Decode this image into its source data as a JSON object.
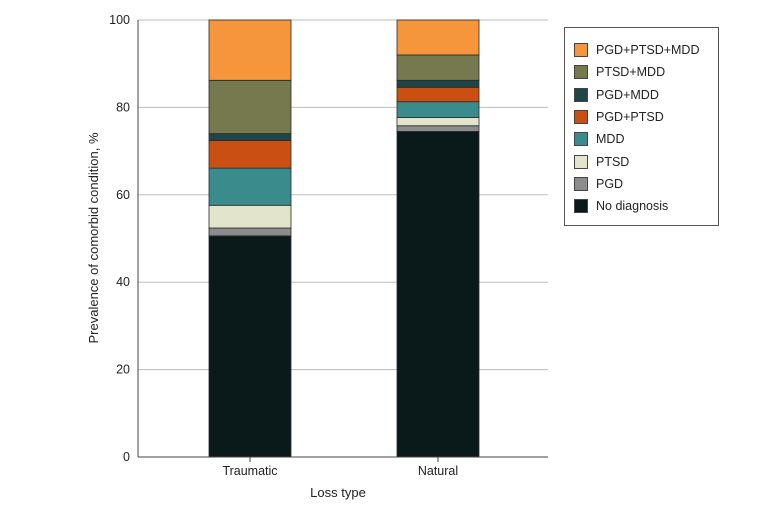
{
  "chart_data": {
    "type": "bar",
    "stacked": true,
    "xlabel": "Loss type",
    "ylabel": "Prevalence of comorbid condition, %",
    "ylim": [
      0,
      100
    ],
    "yticks": [
      0,
      20,
      40,
      60,
      80,
      100
    ],
    "grid": true,
    "legend_position": "top-right",
    "categories": [
      "Traumatic",
      "Natural"
    ],
    "series": [
      {
        "name": "No diagnosis",
        "color": "#0a1a1a",
        "values": [
          50.6,
          74.5
        ]
      },
      {
        "name": "PGD",
        "color": "#8c8c8c",
        "values": [
          1.8,
          1.3
        ]
      },
      {
        "name": "PTSD",
        "color": "#e2e4cc",
        "values": [
          5.2,
          1.9
        ]
      },
      {
        "name": "MDD",
        "color": "#3a8c8c",
        "values": [
          8.5,
          3.6
        ]
      },
      {
        "name": "PGD+PTSD",
        "color": "#c94f13",
        "values": [
          6.3,
          3.3
        ]
      },
      {
        "name": "PGD+MDD",
        "color": "#1e4548",
        "values": [
          1.6,
          1.6
        ]
      },
      {
        "name": "PTSD+MDD",
        "color": "#76784e",
        "values": [
          12.2,
          5.8
        ]
      },
      {
        "name": "PGD+PTSD+MDD",
        "color": "#f5953c",
        "values": [
          13.8,
          8.0
        ]
      }
    ]
  }
}
